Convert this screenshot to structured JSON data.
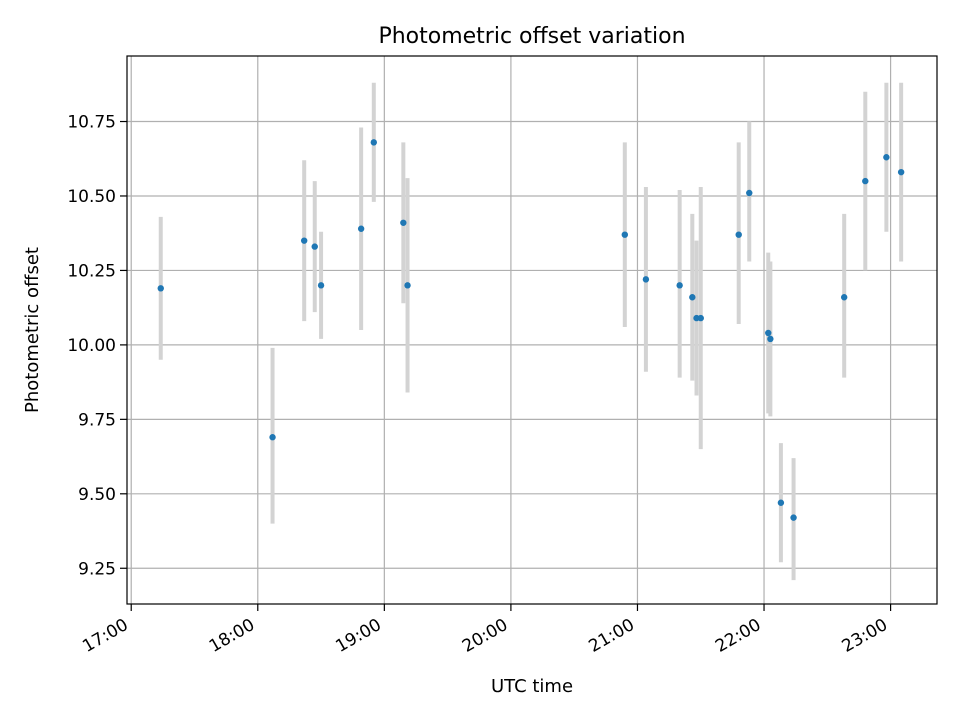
{
  "chart_data": {
    "type": "scatter",
    "title": "Photometric offset variation",
    "xlabel": "UTC time",
    "ylabel": "Photometric offset",
    "x_tick_labels": [
      "17:00",
      "18:00",
      "19:00",
      "20:00",
      "21:00",
      "22:00",
      "23:00"
    ],
    "y_tick_labels": [
      "9.25",
      "9.50",
      "9.75",
      "10.00",
      "10.25",
      "10.50",
      "10.75"
    ],
    "y_ticks": [
      9.25,
      9.5,
      9.75,
      10.0,
      10.25,
      10.5,
      10.75
    ],
    "xlim": [
      "16:58",
      "23:22"
    ],
    "ylim": [
      9.13,
      10.97
    ],
    "grid": true,
    "colors": {
      "points": "#1f77b4",
      "error_bars": "#d3d3d3",
      "grid": "#b0b0b0"
    },
    "points": [
      {
        "x": "17:14",
        "y": 10.19,
        "ylow": 9.95,
        "yhigh": 10.43
      },
      {
        "x": "18:07",
        "y": 9.69,
        "ylow": 9.4,
        "yhigh": 9.99
      },
      {
        "x": "18:22",
        "y": 10.35,
        "ylow": 10.08,
        "yhigh": 10.62
      },
      {
        "x": "18:27",
        "y": 10.33,
        "ylow": 10.11,
        "yhigh": 10.55
      },
      {
        "x": "18:30",
        "y": 10.2,
        "ylow": 10.02,
        "yhigh": 10.38
      },
      {
        "x": "18:49",
        "y": 10.39,
        "ylow": 10.05,
        "yhigh": 10.73
      },
      {
        "x": "18:55",
        "y": 10.68,
        "ylow": 10.48,
        "yhigh": 10.88
      },
      {
        "x": "19:09",
        "y": 10.41,
        "ylow": 10.14,
        "yhigh": 10.68
      },
      {
        "x": "19:11",
        "y": 10.2,
        "ylow": 9.84,
        "yhigh": 10.56
      },
      {
        "x": "20:54",
        "y": 10.37,
        "ylow": 10.06,
        "yhigh": 10.68
      },
      {
        "x": "21:04",
        "y": 10.22,
        "ylow": 9.91,
        "yhigh": 10.53
      },
      {
        "x": "21:20",
        "y": 10.2,
        "ylow": 9.89,
        "yhigh": 10.52
      },
      {
        "x": "21:26",
        "y": 10.16,
        "ylow": 9.88,
        "yhigh": 10.44
      },
      {
        "x": "21:28",
        "y": 10.09,
        "ylow": 9.83,
        "yhigh": 10.35
      },
      {
        "x": "21:30",
        "y": 10.09,
        "ylow": 9.65,
        "yhigh": 10.53
      },
      {
        "x": "21:48",
        "y": 10.37,
        "ylow": 10.07,
        "yhigh": 10.68
      },
      {
        "x": "21:53",
        "y": 10.51,
        "ylow": 10.28,
        "yhigh": 10.75
      },
      {
        "x": "22:02",
        "y": 10.04,
        "ylow": 9.77,
        "yhigh": 10.31
      },
      {
        "x": "22:03",
        "y": 10.02,
        "ylow": 9.76,
        "yhigh": 10.28
      },
      {
        "x": "22:08",
        "y": 9.47,
        "ylow": 9.27,
        "yhigh": 9.67
      },
      {
        "x": "22:14",
        "y": 9.42,
        "ylow": 9.21,
        "yhigh": 9.62
      },
      {
        "x": "22:38",
        "y": 10.16,
        "ylow": 9.89,
        "yhigh": 10.44
      },
      {
        "x": "22:48",
        "y": 10.55,
        "ylow": 10.25,
        "yhigh": 10.85
      },
      {
        "x": "22:58",
        "y": 10.63,
        "ylow": 10.38,
        "yhigh": 10.88
      },
      {
        "x": "23:05",
        "y": 10.58,
        "ylow": 10.28,
        "yhigh": 10.88
      }
    ]
  }
}
